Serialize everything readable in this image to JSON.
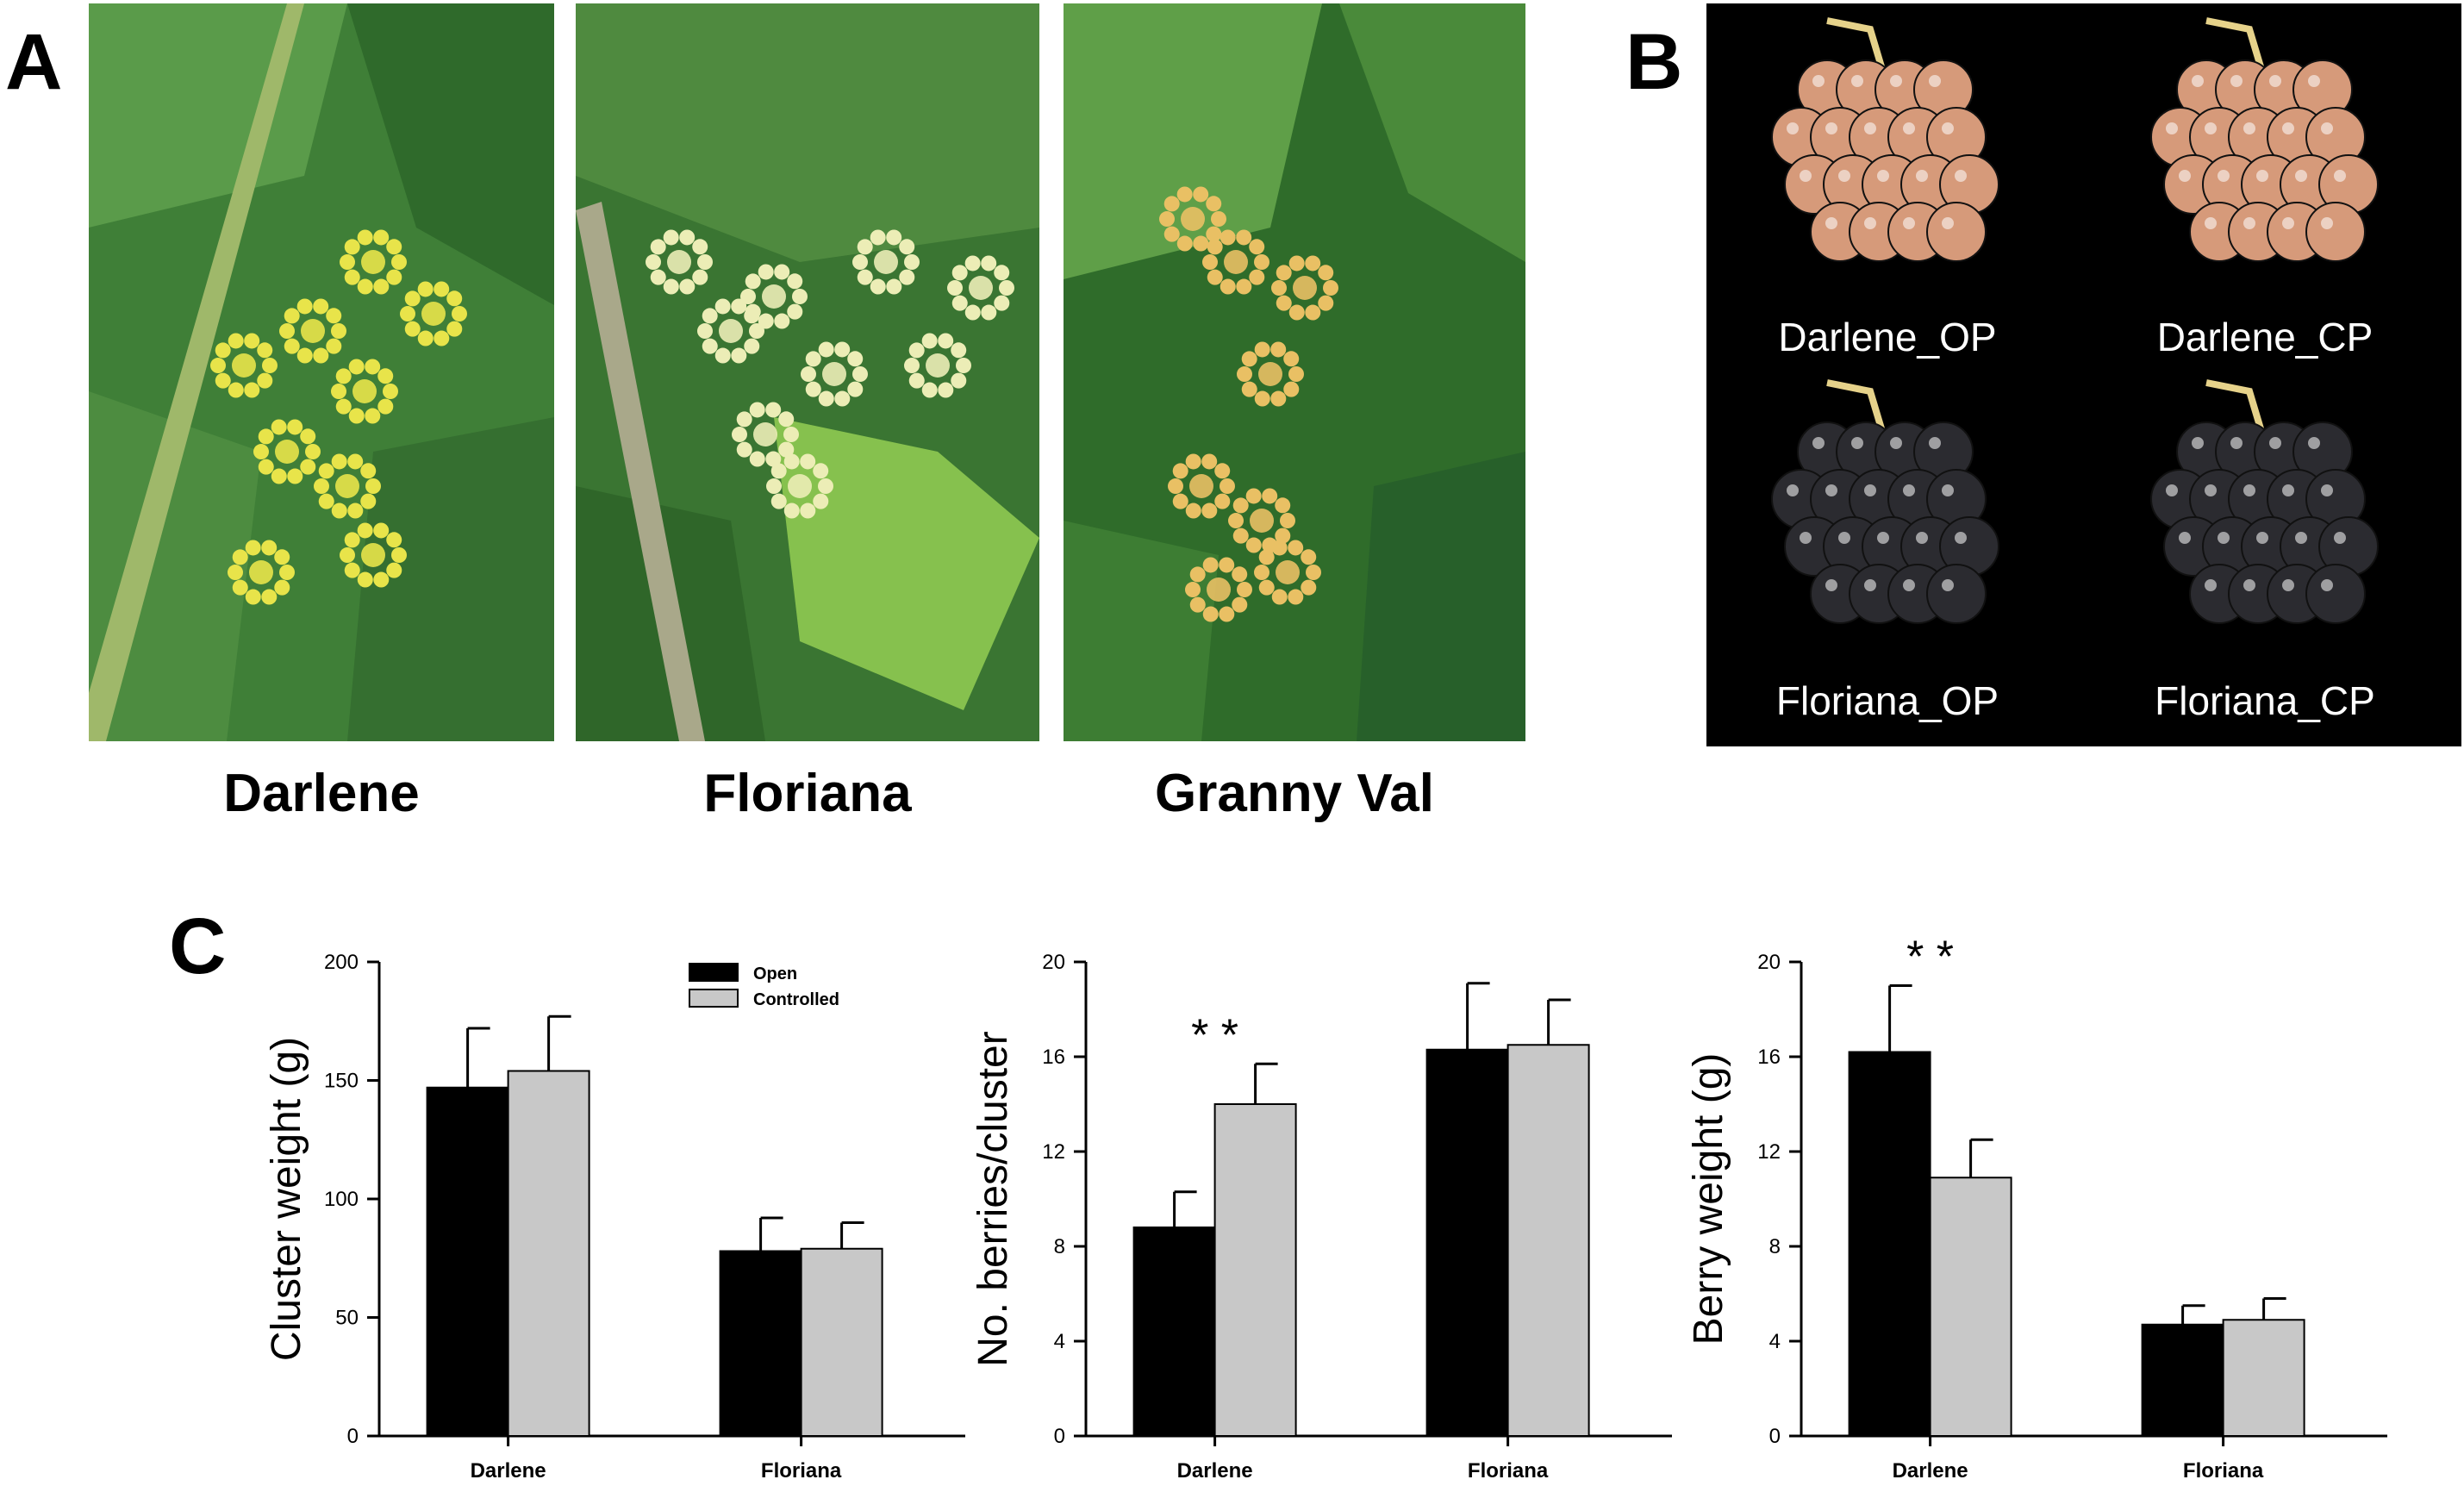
{
  "panel_a": {
    "letter": "A",
    "photos": [
      {
        "caption": "Darlene",
        "flower_color": "#e8e44a"
      },
      {
        "caption": "Floriana",
        "flower_color": "#ecedb6"
      },
      {
        "caption": "Granny Val",
        "flower_color": "#e9c064"
      }
    ]
  },
  "panel_b": {
    "letter": "B",
    "images": [
      {
        "label": "Darlene_OP",
        "berry_color": "#d69a7a"
      },
      {
        "label": "Darlene_CP",
        "berry_color": "#d69a7a"
      },
      {
        "label": "Floriana_OP",
        "berry_color": "#2b2b30"
      },
      {
        "label": "Floriana_CP",
        "berry_color": "#2b2b30"
      }
    ]
  },
  "panel_c": {
    "letter": "C",
    "legend": [
      {
        "label": "Open",
        "color": "#000000"
      },
      {
        "label": "Controlled",
        "color": "#c8c8c8"
      }
    ]
  },
  "chart_data": [
    {
      "type": "bar",
      "categories": [
        "Darlene",
        "Floriana"
      ],
      "ylabel": "Cluster weight (g)",
      "ylim": [
        0,
        200
      ],
      "yticks": [
        0,
        50,
        100,
        150,
        200
      ],
      "series": [
        {
          "name": "Open",
          "values": [
            147,
            78
          ],
          "errors": [
            25,
            14
          ]
        },
        {
          "name": "Controlled",
          "values": [
            154,
            79
          ],
          "errors": [
            23,
            11
          ]
        }
      ],
      "annotations": []
    },
    {
      "type": "bar",
      "categories": [
        "Darlene",
        "Floriana"
      ],
      "ylabel": "No. berries/cluster",
      "ylim": [
        0,
        20
      ],
      "yticks": [
        0,
        4,
        8,
        12,
        16,
        20
      ],
      "series": [
        {
          "name": "Open",
          "values": [
            8.8,
            16.3
          ],
          "errors": [
            1.5,
            2.8
          ]
        },
        {
          "name": "Controlled",
          "values": [
            14.0,
            16.5
          ],
          "errors": [
            1.7,
            1.9
          ]
        }
      ],
      "annotations": [
        {
          "text": "**",
          "category": "Darlene"
        }
      ]
    },
    {
      "type": "bar",
      "categories": [
        "Darlene",
        "Floriana"
      ],
      "ylabel": "Berry weight (g)",
      "ylim": [
        0,
        20
      ],
      "yticks": [
        0,
        4,
        8,
        12,
        16,
        20
      ],
      "series": [
        {
          "name": "Open",
          "values": [
            16.2,
            4.7
          ],
          "errors": [
            2.8,
            0.8
          ]
        },
        {
          "name": "Controlled",
          "values": [
            10.9,
            4.9
          ],
          "errors": [
            1.6,
            0.9
          ]
        }
      ],
      "annotations": [
        {
          "text": "**",
          "category": "Darlene"
        }
      ]
    }
  ]
}
